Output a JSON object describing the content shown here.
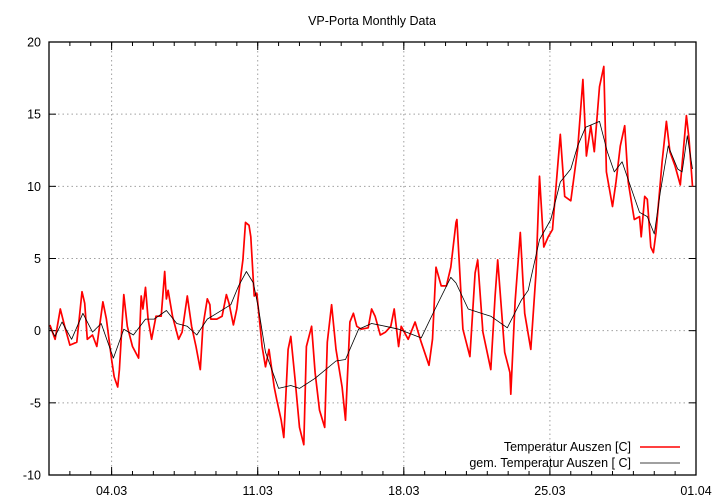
{
  "chart_data": {
    "type": "line",
    "title": "VP-Porta Monthly Data",
    "xlabel": "",
    "ylabel": "",
    "xlim": [
      "01.03 00:00",
      "01.04 00:00"
    ],
    "ylim": [
      -10,
      20
    ],
    "x_ticks": [
      "04.03",
      "11.03",
      "18.03",
      "25.03",
      "01.04"
    ],
    "y_ticks": [
      "-10",
      "-5",
      "0",
      "5",
      "10",
      "15",
      "20"
    ],
    "grid": true,
    "legend_position": "bottom-right",
    "series": [
      {
        "name": "Temperatur Auszen [C]",
        "color": "#ff0000",
        "points": [
          [
            "01.03 01:00",
            0.4
          ],
          [
            "01.03 07:00",
            -0.6
          ],
          [
            "01.03 13:00",
            1.5
          ],
          [
            "01.03 18:00",
            0.3
          ],
          [
            "02.03 00:00",
            -1.0
          ],
          [
            "02.03 08:00",
            -0.8
          ],
          [
            "02.03 14:00",
            2.7
          ],
          [
            "02.03 17:00",
            1.9
          ],
          [
            "02.03 20:00",
            -0.6
          ],
          [
            "03.03 02:00",
            -0.3
          ],
          [
            "03.03 07:00",
            -1.1
          ],
          [
            "03.03 14:00",
            2.0
          ],
          [
            "03.03 18:00",
            0.8
          ],
          [
            "04.03 00:00",
            -2.0
          ],
          [
            "04.03 03:00",
            -3.2
          ],
          [
            "04.03 07:00",
            -3.9
          ],
          [
            "04.03 09:00",
            -2.7
          ],
          [
            "04.03 14:00",
            2.5
          ],
          [
            "04.03 18:00",
            0.3
          ],
          [
            "05.03 00:00",
            -1.1
          ],
          [
            "05.03 07:00",
            -1.9
          ],
          [
            "05.03 10:00",
            2.4
          ],
          [
            "05.03 12:00",
            1.5
          ],
          [
            "05.03 15:00",
            3.0
          ],
          [
            "05.03 18:00",
            0.8
          ],
          [
            "05.03 22:00",
            -0.6
          ],
          [
            "06.03 03:00",
            1.0
          ],
          [
            "06.03 09:00",
            1.0
          ],
          [
            "06.03 13:00",
            4.1
          ],
          [
            "06.03 15:00",
            2.2
          ],
          [
            "06.03 17:00",
            2.8
          ],
          [
            "06.03 22:00",
            1.0
          ],
          [
            "07.03 05:00",
            -0.6
          ],
          [
            "07.03 09:00",
            -0.1
          ],
          [
            "07.03 15:00",
            2.4
          ],
          [
            "07.03 20:00",
            0.3
          ],
          [
            "08.03 01:00",
            -1.1
          ],
          [
            "08.03 06:00",
            -2.7
          ],
          [
            "08.03 09:00",
            0.3
          ],
          [
            "08.03 14:00",
            2.2
          ],
          [
            "08.03 17:00",
            1.8
          ],
          [
            "08.03 18:00",
            0.8
          ],
          [
            "09.03 01:00",
            0.8
          ],
          [
            "09.03 07:00",
            1.0
          ],
          [
            "09.03 12:00",
            2.5
          ],
          [
            "09.03 15:00",
            1.9
          ],
          [
            "09.03 20:00",
            0.4
          ],
          [
            "10.03 00:00",
            1.5
          ],
          [
            "10.03 05:00",
            4.0
          ],
          [
            "10.03 07:00",
            4.9
          ],
          [
            "10.03 10:00",
            7.5
          ],
          [
            "10.03 14:00",
            7.3
          ],
          [
            "10.03 16:00",
            6.5
          ],
          [
            "10.03 20:00",
            2.4
          ],
          [
            "10.03 23:00",
            2.6
          ],
          [
            "11.03 05:00",
            -1.1
          ],
          [
            "11.03 09:00",
            -2.5
          ],
          [
            "11.03 13:00",
            -1.3
          ],
          [
            "11.03 19:00",
            -3.9
          ],
          [
            "11.03 22:00",
            -4.8
          ],
          [
            "12.03 03:00",
            -6.2
          ],
          [
            "12.03 06:00",
            -7.4
          ],
          [
            "12.03 11:00",
            -1.3
          ],
          [
            "12.03 14:00",
            -0.4
          ],
          [
            "12.03 19:00",
            -3.4
          ],
          [
            "13.03 00:00",
            -6.7
          ],
          [
            "13.03 05:00",
            -7.9
          ],
          [
            "13.03 08:00",
            -1.1
          ],
          [
            "13.03 14:00",
            0.3
          ],
          [
            "13.03 18:00",
            -2.9
          ],
          [
            "13.03 23:00",
            -5.5
          ],
          [
            "14.03 05:00",
            -6.7
          ],
          [
            "14.03 08:00",
            -0.8
          ],
          [
            "14.03 13:00",
            1.8
          ],
          [
            "14.03 18:00",
            -1.3
          ],
          [
            "15.03 01:00",
            -3.9
          ],
          [
            "15.03 05:00",
            -6.2
          ],
          [
            "15.03 10:00",
            0.6
          ],
          [
            "15.03 14:00",
            1.2
          ],
          [
            "15.03 18:00",
            0.3
          ],
          [
            "15.03 23:00",
            0.1
          ],
          [
            "16.03 07:00",
            0.2
          ],
          [
            "16.03 11:00",
            1.5
          ],
          [
            "16.03 15:00",
            1.0
          ],
          [
            "16.03 21:00",
            -0.3
          ],
          [
            "17.03 03:00",
            -0.1
          ],
          [
            "17.03 09:00",
            0.3
          ],
          [
            "17.03 13:00",
            1.5
          ],
          [
            "17.03 18:00",
            -1.1
          ],
          [
            "17.03 21:00",
            0.3
          ],
          [
            "18.03 05:00",
            -0.6
          ],
          [
            "18.03 13:00",
            0.6
          ],
          [
            "18.03 20:00",
            -0.8
          ],
          [
            "19.03 05:00",
            -2.4
          ],
          [
            "19.03 09:00",
            -0.6
          ],
          [
            "19.03 13:00",
            4.4
          ],
          [
            "19.03 19:00",
            3.1
          ],
          [
            "20.03 01:00",
            3.1
          ],
          [
            "20.03 06:00",
            4.4
          ],
          [
            "20.03 12:00",
            7.5
          ],
          [
            "20.03 13:00",
            7.7
          ],
          [
            "20.03 20:00",
            0.1
          ],
          [
            "21.03 04:00",
            -1.8
          ],
          [
            "21.03 10:00",
            4.0
          ],
          [
            "21.03 13:00",
            4.9
          ],
          [
            "21.03 19:00",
            -0.1
          ],
          [
            "22.03 04:00",
            -2.7
          ],
          [
            "22.03 09:00",
            2.4
          ],
          [
            "22.03 12:00",
            4.9
          ],
          [
            "22.03 20:00",
            -1.5
          ],
          [
            "23.03 02:00",
            -2.9
          ],
          [
            "23.03 03:00",
            -4.4
          ],
          [
            "23.03 08:00",
            2.0
          ],
          [
            "23.03 14:00",
            6.8
          ],
          [
            "23.03 19:00",
            1.2
          ],
          [
            "24.03 02:00",
            -1.3
          ],
          [
            "24.03 08:00",
            4.0
          ],
          [
            "24.03 12:00",
            10.7
          ],
          [
            "24.03 17:00",
            5.8
          ],
          [
            "24.03 22:00",
            6.5
          ],
          [
            "25.03 03:00",
            7.0
          ],
          [
            "25.03 12:00",
            13.6
          ],
          [
            "25.03 17:00",
            9.3
          ],
          [
            "26.03 00:00",
            9.0
          ],
          [
            "26.03 08:00",
            12.6
          ],
          [
            "26.03 14:00",
            17.4
          ],
          [
            "26.03 18:00",
            12.1
          ],
          [
            "26.03 23:00",
            14.2
          ],
          [
            "27.03 03:00",
            12.4
          ],
          [
            "27.03 09:00",
            16.9
          ],
          [
            "27.03 14:00",
            18.3
          ],
          [
            "27.03 17:00",
            11.0
          ],
          [
            "28.03 00:00",
            8.6
          ],
          [
            "28.03 04:00",
            10.3
          ],
          [
            "28.03 09:00",
            12.8
          ],
          [
            "28.03 14:00",
            14.2
          ],
          [
            "28.03 18:00",
            10.3
          ],
          [
            "29.03 01:00",
            7.7
          ],
          [
            "29.03 07:00",
            7.9
          ],
          [
            "29.03 09:00",
            6.5
          ],
          [
            "29.03 13:00",
            9.3
          ],
          [
            "29.03 16:00",
            9.1
          ],
          [
            "29.03 20:00",
            5.8
          ],
          [
            "29.03 23:00",
            5.4
          ],
          [
            "30.03 02:00",
            6.8
          ],
          [
            "30.03 09:00",
            11.7
          ],
          [
            "30.03 14:00",
            14.5
          ],
          [
            "30.03 18:00",
            12.4
          ],
          [
            "31.03 00:00",
            11.4
          ],
          [
            "31.03 06:00",
            10.1
          ],
          [
            "31.03 13:00",
            14.9
          ],
          [
            "31.03 16:00",
            13.3
          ],
          [
            "31.03 20:00",
            10.0
          ]
        ]
      },
      {
        "name": "gem. Temperatur Auszen [ C]",
        "color": "#000000",
        "points": [
          [
            "01.03 01:00",
            0.2
          ],
          [
            "01.03 07:00",
            -0.4
          ],
          [
            "01.03 15:00",
            0.6
          ],
          [
            "02.03 02:00",
            -0.6
          ],
          [
            "02.03 15:00",
            1.2
          ],
          [
            "03.03 02:00",
            -0.1
          ],
          [
            "03.03 12:00",
            0.5
          ],
          [
            "04.03 02:00",
            -1.9
          ],
          [
            "04.03 14:00",
            0.1
          ],
          [
            "05.03 01:00",
            -0.3
          ],
          [
            "05.03 15:00",
            0.8
          ],
          [
            "06.03 01:00",
            0.8
          ],
          [
            "06.03 15:00",
            1.4
          ],
          [
            "07.03 03:00",
            0.5
          ],
          [
            "07.03 15:00",
            0.3
          ],
          [
            "08.03 02:00",
            -0.3
          ],
          [
            "08.03 14:00",
            0.8
          ],
          [
            "09.03 01:00",
            1.2
          ],
          [
            "09.03 17:00",
            1.8
          ],
          [
            "10.03 02:00",
            3.1
          ],
          [
            "10.03 11:00",
            4.1
          ],
          [
            "10.03 19:00",
            3.3
          ],
          [
            "11.03 01:00",
            1.5
          ],
          [
            "11.03 09:00",
            -1.5
          ],
          [
            "12.03 00:00",
            -4.0
          ],
          [
            "12.03 14:00",
            -3.8
          ],
          [
            "13.03 00:00",
            -4.0
          ],
          [
            "13.03 18:00",
            -3.3
          ],
          [
            "14.03 18:00",
            -2.1
          ],
          [
            "15.03 05:00",
            -2.0
          ],
          [
            "15.03 20:00",
            0.1
          ],
          [
            "16.03 11:00",
            0.5
          ],
          [
            "17.03 03:00",
            0.3
          ],
          [
            "17.03 18:00",
            0.1
          ],
          [
            "18.03 20:00",
            -0.5
          ],
          [
            "19.03 12:00",
            1.5
          ],
          [
            "20.03 06:00",
            3.7
          ],
          [
            "20.03 12:00",
            3.3
          ],
          [
            "21.03 02:00",
            1.5
          ],
          [
            "21.03 17:00",
            1.2
          ],
          [
            "22.03 04:00",
            1.0
          ],
          [
            "22.03 23:00",
            0.2
          ],
          [
            "23.03 15:00",
            2.1
          ],
          [
            "23.03 23:00",
            2.8
          ],
          [
            "24.03 12:00",
            6.3
          ],
          [
            "25.03 01:00",
            7.7
          ],
          [
            "25.03 12:00",
            10.3
          ],
          [
            "26.03 00:00",
            11.2
          ],
          [
            "26.03 08:00",
            12.8
          ],
          [
            "26.03 17:00",
            14.1
          ],
          [
            "27.03 09:00",
            14.5
          ],
          [
            "27.03 18:00",
            12.4
          ],
          [
            "28.03 02:00",
            11.0
          ],
          [
            "28.03 11:00",
            11.7
          ],
          [
            "28.03 19:00",
            10.3
          ],
          [
            "29.03 07:00",
            8.2
          ],
          [
            "29.03 16:00",
            7.9
          ],
          [
            "30.03 00:00",
            6.7
          ],
          [
            "30.03 07:00",
            9.6
          ],
          [
            "30.03 16:00",
            12.8
          ],
          [
            "31.03 03:00",
            11.2
          ],
          [
            "31.03 08:00",
            11.0
          ],
          [
            "31.03 14:00",
            13.5
          ],
          [
            "31.03 20:00",
            11.2
          ]
        ]
      }
    ]
  }
}
